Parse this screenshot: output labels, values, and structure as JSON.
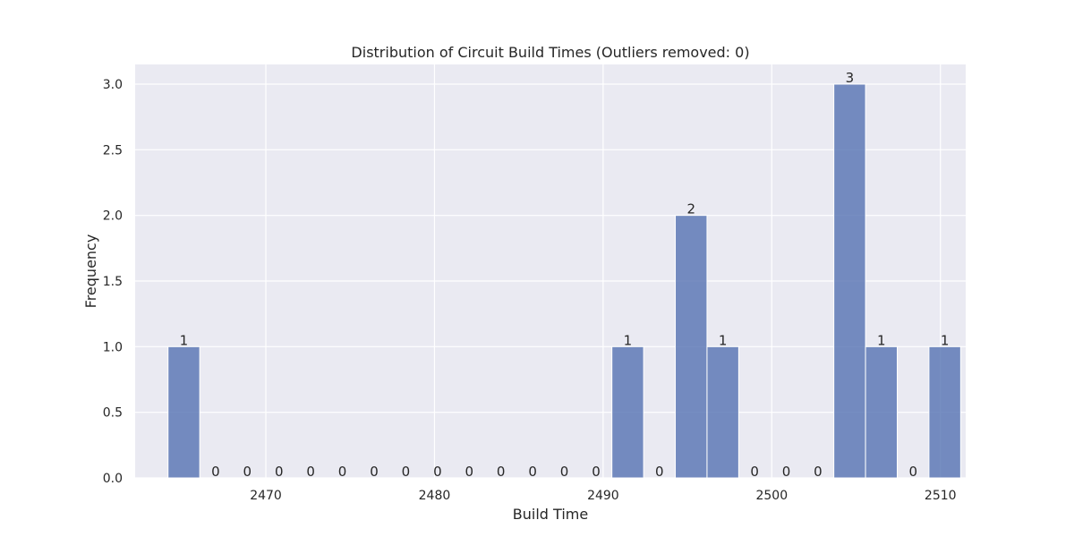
{
  "chart_data": {
    "type": "bar",
    "title": "Distribution of Circuit Build Times (Outliers removed: 0)",
    "xlabel": "Build Time",
    "ylabel": "Frequency",
    "xlim": [
      2462.25,
      2511.5
    ],
    "ylim": [
      0,
      3.15
    ],
    "x_ticks": [
      2470,
      2480,
      2490,
      2500,
      2510
    ],
    "y_ticks": [
      0.0,
      0.5,
      1.0,
      1.5,
      2.0,
      2.5,
      3.0
    ],
    "y_tick_labels": [
      "0.0",
      "0.5",
      "1.0",
      "1.5",
      "2.0",
      "2.5",
      "3.0"
    ],
    "bin_edges": [
      2464.2,
      2466.08,
      2467.96,
      2469.84,
      2471.72,
      2473.6,
      2475.48,
      2477.36,
      2479.24,
      2481.12,
      2483.0,
      2484.88,
      2486.76,
      2488.64,
      2490.52,
      2492.4,
      2494.28,
      2496.16,
      2498.04,
      2499.92,
      2501.8,
      2503.68,
      2505.56,
      2507.44,
      2509.32
    ],
    "values": [
      1,
      0,
      0,
      0,
      0,
      0,
      0,
      0,
      0,
      0,
      0,
      0,
      0,
      0,
      1,
      0,
      2,
      1,
      0,
      0,
      0,
      3,
      1,
      0,
      1
    ],
    "grid": true,
    "colors": {
      "plot_background": "#EAEAF2",
      "grid": "#FFFFFF",
      "bar_fill": "#5975B3",
      "bar_edge": "#FFFFFF",
      "text": "#262626"
    }
  }
}
